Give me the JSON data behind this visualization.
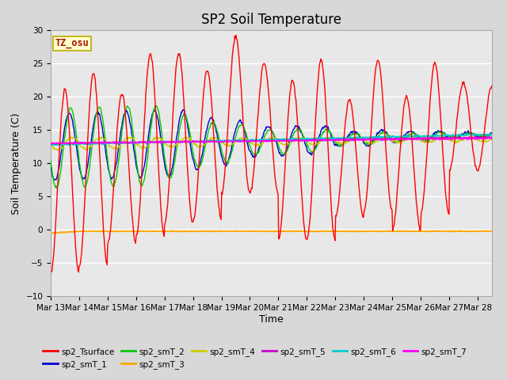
{
  "title": "SP2 Soil Temperature",
  "xlabel": "Time",
  "ylabel": "Soil Temperature (C)",
  "ylim": [
    -10,
    30
  ],
  "x_tick_labels": [
    "Mar 13",
    "Mar 14",
    "Mar 15",
    "Mar 16",
    "Mar 17",
    "Mar 18",
    "Mar 19",
    "Mar 20",
    "Mar 21",
    "Mar 22",
    "Mar 23",
    "Mar 24",
    "Mar 25",
    "Mar 26",
    "Mar 27",
    "Mar 28"
  ],
  "series_colors": {
    "sp2_Tsurface": "#ff0000",
    "sp2_smT_1": "#0000cc",
    "sp2_smT_2": "#00cc00",
    "sp2_smT_3": "#ffa500",
    "sp2_smT_4": "#cccc00",
    "sp2_smT_5": "#cc00cc",
    "sp2_smT_6": "#00cccc",
    "sp2_smT_7": "#ff00ff"
  },
  "annotation_text": "TZ_osu",
  "annotation_color": "#aa1100",
  "annotation_bg": "#ffffcc",
  "background_color": "#d8d8d8",
  "plot_bg_color": "#e8e8e8",
  "title_fontsize": 12,
  "label_fontsize": 9,
  "tick_fontsize": 7.5,
  "day_peaks": [
    21.0,
    23.5,
    20.5,
    26.5,
    26.5,
    24.0,
    29.0,
    25.0,
    22.5,
    25.5,
    19.5,
    25.5,
    20.0,
    25.0,
    22.0,
    21.5
  ],
  "night_lows": [
    -6.5,
    -5.5,
    -2.0,
    -1.0,
    1.0,
    1.5,
    5.5,
    5.5,
    -1.5,
    -1.5,
    2.0,
    3.0,
    0.0,
    2.5,
    9.0,
    9.0
  ],
  "smT1_base": 12.5,
  "smT1_trend": 0.12,
  "smT2_base": 12.3,
  "smT2_trend": 0.13,
  "smT4_base": 13.0,
  "smT4_trend": 0.04,
  "smT5_base": 13.0,
  "smT5_trend": 0.06,
  "smT6_base": 12.8,
  "smT6_trend": 0.1,
  "smT7_base": 13.0,
  "smT7_trend": 0.05,
  "smT3_level": -0.2
}
